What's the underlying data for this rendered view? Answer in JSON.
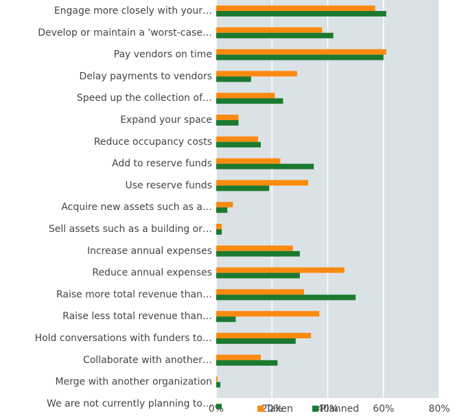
{
  "chart_data": {
    "type": "hbar",
    "categories": [
      "Engage more closely with your…",
      "Develop or maintain a 'worst-case…",
      "Pay vendors on time",
      "Delay payments to vendors",
      "Speed up the collection of…",
      "Expand your space",
      "Reduce occupancy costs",
      "Add to reserve funds",
      "Use reserve funds",
      "Acquire new assets such as a…",
      "Sell assets such as a building or…",
      "Increase annual expenses",
      "Reduce annual expenses",
      "Raise more total revenue than…",
      "Raise less total revenue than…",
      "Hold conversations with funders to…",
      "Collaborate with another…",
      "Merge with another organization",
      "We are not currently planning to…"
    ],
    "series": [
      {
        "name": "Taken",
        "color": "#fb8a10",
        "values": [
          57,
          38,
          61,
          29,
          21,
          8,
          15,
          23,
          33,
          6,
          2,
          27.5,
          46,
          31.5,
          37,
          34,
          16,
          0.5,
          0
        ]
      },
      {
        "name": "Planned",
        "color": "#1c7a30",
        "values": [
          61,
          42,
          60,
          12.5,
          24,
          8,
          16,
          35,
          19,
          4,
          2,
          30,
          30,
          50,
          7,
          28.5,
          22,
          1.5,
          2
        ]
      }
    ],
    "xlim": [
      0,
      80
    ],
    "xticks": [
      {
        "value": 0,
        "label": "0%"
      },
      {
        "value": 20,
        "label": "20%"
      },
      {
        "value": 40,
        "label": "40%"
      },
      {
        "value": 60,
        "label": "60%"
      },
      {
        "value": 80,
        "label": "80%"
      }
    ],
    "grid": true,
    "legend": "bottom"
  }
}
